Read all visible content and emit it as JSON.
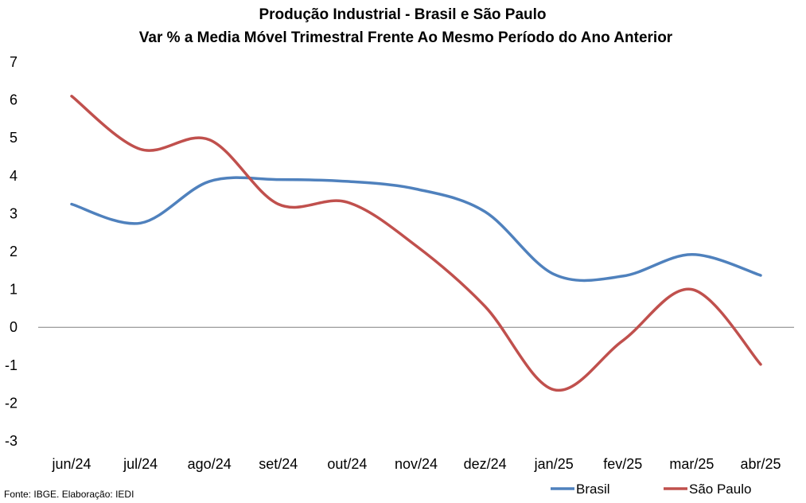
{
  "chart_data": {
    "type": "line",
    "title": "Produção Industrial - Brasil e São Paulo",
    "subtitle": "Var % a Media Móvel Trimestral Frente Ao Mesmo Período do Ano Anterior",
    "categories": [
      "jun/24",
      "jul/24",
      "ago/24",
      "set/24",
      "out/24",
      "nov/24",
      "dez/24",
      "jan/25",
      "fev/25",
      "mar/25",
      "abr/25"
    ],
    "ylim": [
      -3,
      7
    ],
    "yticks": [
      "7",
      "6",
      "5",
      "4",
      "3",
      "2",
      "1",
      "0",
      "-1",
      "-2",
      "-3"
    ],
    "grid": false,
    "legend_position": "bottom-right",
    "series": [
      {
        "name": "Brasil",
        "color": "#4f81bd",
        "values": [
          3.25,
          2.75,
          3.85,
          3.9,
          3.85,
          3.65,
          3.05,
          1.4,
          1.35,
          1.92,
          1.37
        ]
      },
      {
        "name": "São Paulo",
        "color": "#c0504d",
        "values": [
          6.1,
          4.7,
          4.95,
          3.25,
          3.3,
          2.15,
          0.55,
          -1.65,
          -0.35,
          1.0,
          -0.98
        ]
      }
    ],
    "source": "Fonte: IBGE. Elaboração: IEDI"
  }
}
